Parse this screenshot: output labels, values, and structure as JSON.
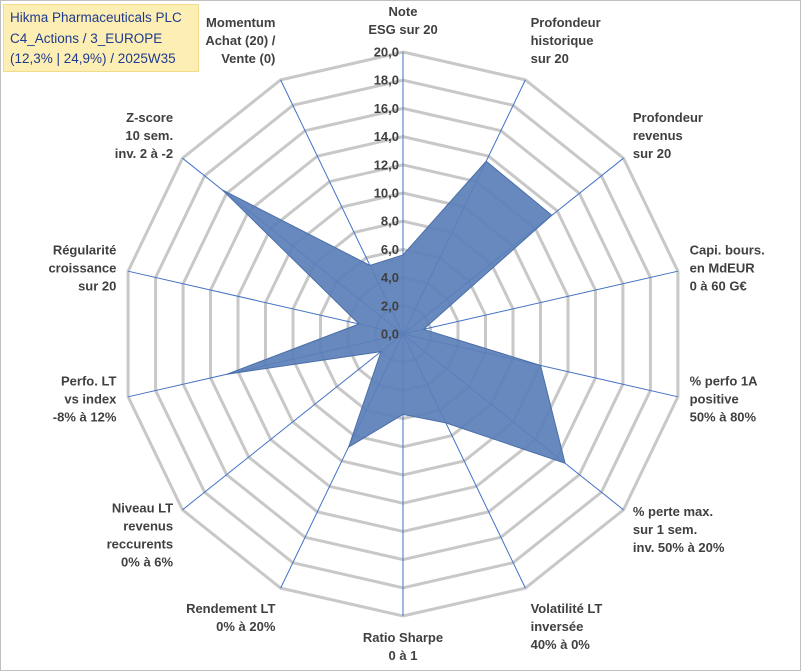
{
  "title_lines": [
    "Hikma Pharmaceuticals PLC",
    "C4_Actions / 3_EUROPE",
    "(12,3% | 24,9%) / 2025W35"
  ],
  "chart_data": {
    "type": "radar",
    "rmin": 0,
    "rmax": 20,
    "ticks": [
      "0,0",
      "2,0",
      "4,0",
      "6,0",
      "8,0",
      "10,0",
      "12,0",
      "14,0",
      "16,0",
      "18,0",
      "20,0"
    ],
    "axes": [
      [
        "Note",
        "ESG sur 20"
      ],
      [
        "Profondeur",
        "historique",
        "sur 20"
      ],
      [
        "Profondeur",
        "revenus",
        "sur 20"
      ],
      [
        "Capi. bours.",
        "en MdEUR",
        "0 à 60 G€"
      ],
      [
        "% perfo 1A",
        "positive",
        "50% à 80%"
      ],
      [
        "% perte max.",
        "sur 1 sem.",
        "inv. 50% à 20%"
      ],
      [
        "Volatilité LT",
        "inversée",
        "40% à 0%"
      ],
      [
        "Ratio Sharpe",
        "0 à 1"
      ],
      [
        "Rendement LT",
        "0% à 20%"
      ],
      [
        "Niveau LT",
        "revenus",
        "reccurents",
        "0% à 6%"
      ],
      [
        "Perfo. LT",
        "vs index",
        "-8% à 12%"
      ],
      [
        "Régularité",
        "croissance",
        "sur 20"
      ],
      [
        "Z-score",
        "10 sem.",
        "inv. 2 à -2"
      ],
      [
        "Momentum",
        "Achat (20) /",
        "Vente (0)"
      ]
    ],
    "values": [
      5.6,
      13.6,
      13.5,
      1.5,
      10.0,
      14.7,
      7.0,
      5.7,
      8.9,
      2.0,
      12.8,
      3.2,
      16.4,
      5.4
    ],
    "colors": {
      "fill": "#5b7fb8",
      "stroke": "#4a6fa8",
      "spoke": "#4472c4",
      "grid": "#c8c8c8"
    },
    "grid": true,
    "legend": "none"
  }
}
